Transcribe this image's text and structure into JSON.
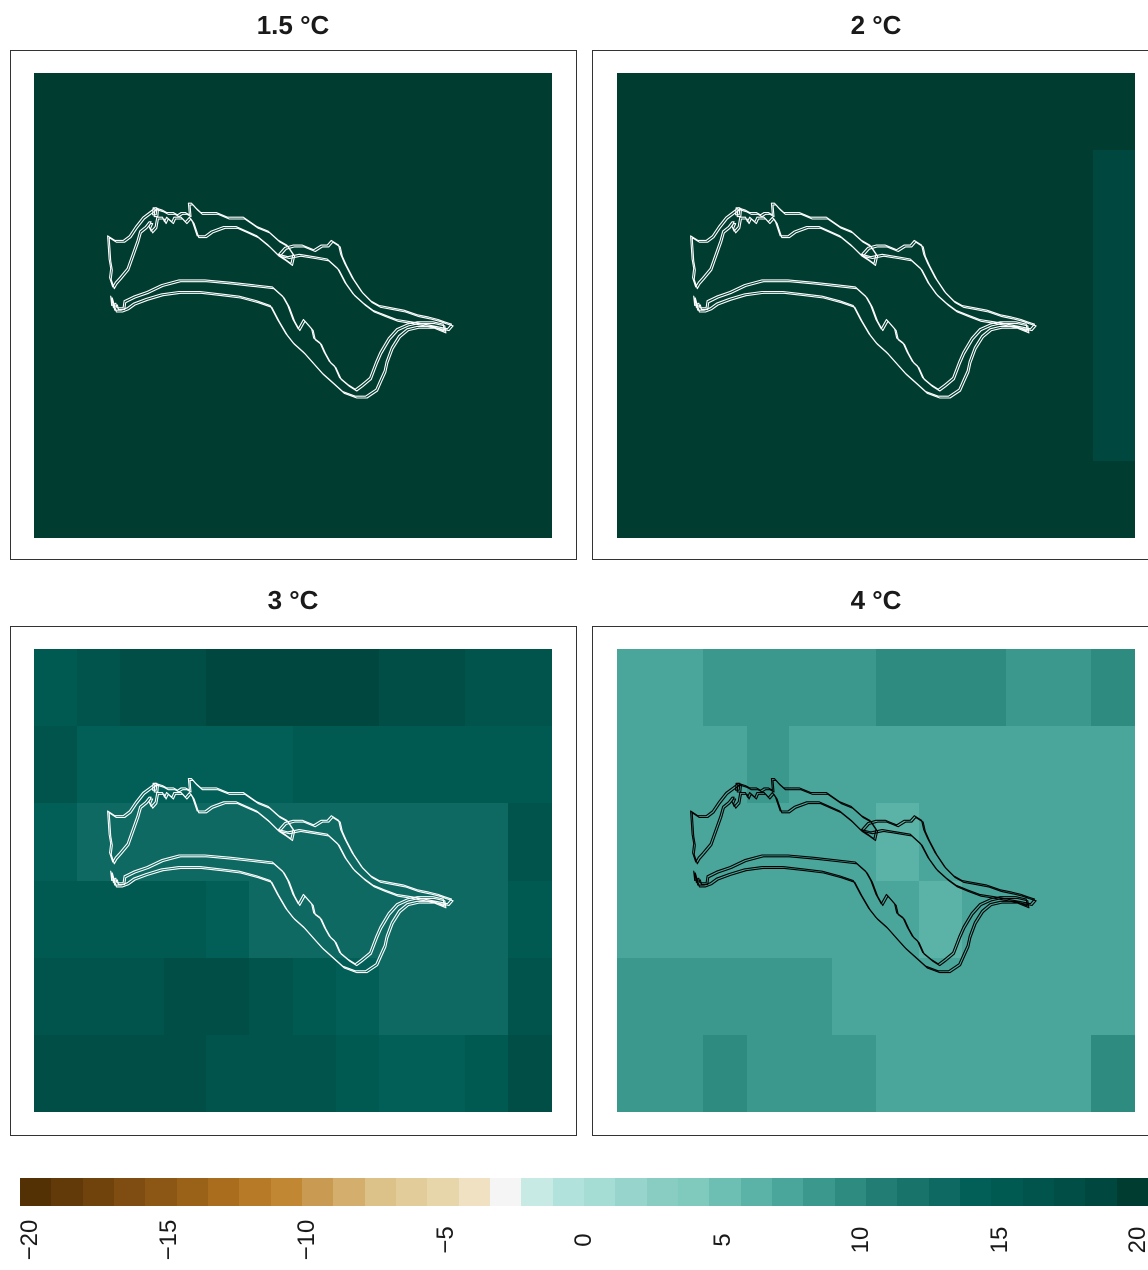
{
  "chart_data": {
    "type": "heatmap",
    "colorbar": {
      "min": -20,
      "max": 20,
      "ticks": [
        -20,
        -15,
        -10,
        -5,
        0,
        5,
        10,
        15,
        20
      ],
      "tick_labels": [
        "−20",
        "−15",
        "−10",
        "−5",
        "0",
        "5",
        "10",
        "15",
        "20"
      ],
      "colors": [
        "#543005",
        "#623a09",
        "#70430d",
        "#7f4c11",
        "#8c5614",
        "#9a6118",
        "#a96d1d",
        "#b77a26",
        "#c18733",
        "#c99a52",
        "#d3ae6d",
        "#dcc188",
        "#e2cc99",
        "#e8d6ab",
        "#efe1c1",
        "#f5f5f5",
        "#c7eae5",
        "#b2e2dc",
        "#a5dcd4",
        "#97d5cc",
        "#89cdc2",
        "#7fc9bd",
        "#6cbfb2",
        "#5ab3a6",
        "#4aa69a",
        "#3b988d",
        "#2d8b80",
        "#227e74",
        "#18736a",
        "#0d6961",
        "#015f57",
        "#015a52",
        "#00544c",
        "#004e46",
        "#00483f",
        "#003c30"
      ]
    },
    "panels": [
      {
        "title": "1.5 °C",
        "outline_color": "#ffffff",
        "x_breaks": [
          0,
          1
        ],
        "y_breaks": [
          0,
          1
        ],
        "values": [
          [
            19.4
          ]
        ]
      },
      {
        "title": "2 °C",
        "outline_color": "#ffffff",
        "x_breaks": [
          0,
          0.918,
          1
        ],
        "y_breaks": [
          0,
          0.165,
          0.835,
          1
        ],
        "values": [
          [
            19.4,
            19.4
          ],
          [
            19.4,
            18.8
          ],
          [
            19.4,
            19.4
          ]
        ]
      },
      {
        "title": "3 °C",
        "outline_color": "#ffffff",
        "x_breaks": [
          0,
          0.083,
          0.166,
          0.25,
          0.333,
          0.416,
          0.5,
          0.583,
          0.666,
          0.75,
          0.833,
          0.916,
          1
        ],
        "y_breaks": [
          0,
          0.167,
          0.333,
          0.5,
          0.667,
          0.833,
          1
        ],
        "values": [
          [
            15.5,
            16.6,
            17.6,
            17.6,
            18.4,
            18.4,
            18.4,
            18.4,
            17.6,
            17.6,
            16.6,
            16.6
          ],
          [
            16.6,
            14.2,
            14.2,
            14.2,
            14.2,
            14.2,
            15.5,
            15.5,
            15.0,
            15.0,
            15.0,
            15.0
          ],
          [
            14.2,
            13.3,
            13.3,
            13.3,
            13.3,
            13.3,
            13.3,
            13.3,
            13.3,
            13.3,
            13.3,
            16.6
          ],
          [
            15.5,
            15.5,
            15.5,
            15.5,
            14.2,
            13.3,
            13.3,
            13.3,
            13.3,
            13.3,
            13.3,
            15.5
          ],
          [
            16.6,
            16.6,
            16.6,
            17.6,
            17.6,
            16.6,
            15.5,
            14.2,
            13.3,
            13.3,
            13.3,
            16.6
          ],
          [
            17.6,
            17.6,
            17.6,
            17.6,
            16.6,
            16.6,
            16.6,
            15.5,
            14.2,
            14.2,
            15.5,
            17.6
          ]
        ]
      },
      {
        "title": "4 °C",
        "outline_color": "#000000",
        "x_breaks": [
          0,
          0.083,
          0.166,
          0.25,
          0.333,
          0.416,
          0.5,
          0.583,
          0.666,
          0.75,
          0.833,
          0.916,
          1
        ],
        "y_breaks": [
          0,
          0.167,
          0.333,
          0.5,
          0.667,
          0.833,
          1
        ],
        "values": [
          [
            7.7,
            7.7,
            8.8,
            8.8,
            8.8,
            8.8,
            9.9,
            9.9,
            9.9,
            8.8,
            8.8,
            9.9
          ],
          [
            7.7,
            6.9,
            6.9,
            8.8,
            6.9,
            6.9,
            7.7,
            7.7,
            7.7,
            7.7,
            7.7,
            6.9
          ],
          [
            6.9,
            6.9,
            6.9,
            6.9,
            6.9,
            6.9,
            6.3,
            6.9,
            6.9,
            6.9,
            6.9,
            7.7
          ],
          [
            7.7,
            7.7,
            7.7,
            7.7,
            6.9,
            6.9,
            6.9,
            6.3,
            6.9,
            6.9,
            6.9,
            6.9
          ],
          [
            8.8,
            8.8,
            8.8,
            8.8,
            8.8,
            7.7,
            6.9,
            6.9,
            6.9,
            6.9,
            6.9,
            7.7
          ],
          [
            8.8,
            8.8,
            9.9,
            8.8,
            8.8,
            8.8,
            7.7,
            7.7,
            7.7,
            7.7,
            7.7,
            9.9
          ]
        ]
      }
    ]
  }
}
